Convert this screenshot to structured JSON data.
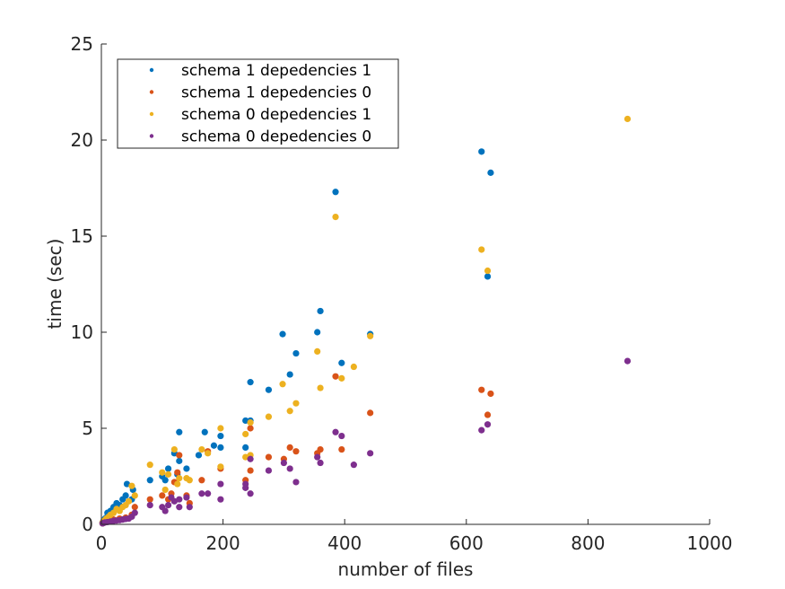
{
  "chart_data": {
    "type": "scatter",
    "title": "",
    "xlabel": "number of files",
    "ylabel": "time (sec)",
    "xlim": [
      0,
      1000
    ],
    "ylim": [
      0,
      25
    ],
    "xticks": [
      0,
      200,
      400,
      600,
      800,
      1000
    ],
    "yticks": [
      0,
      5,
      10,
      15,
      20,
      25
    ],
    "xtick_labels": [
      "0",
      "200",
      "400",
      "600",
      "800",
      "1000"
    ],
    "ytick_labels": [
      "0",
      "5",
      "10",
      "15",
      "20",
      "25"
    ],
    "grid": false,
    "legend_position": "top-left",
    "series": [
      {
        "name": "schema 1 depedencies 1",
        "color": "#0072BD",
        "points": [
          [
            2,
            0.1
          ],
          [
            4,
            0.2
          ],
          [
            6,
            0.3
          ],
          [
            8,
            0.35
          ],
          [
            10,
            0.6
          ],
          [
            15,
            0.7
          ],
          [
            20,
            0.9
          ],
          [
            25,
            1.1
          ],
          [
            30,
            1.0
          ],
          [
            35,
            1.3
          ],
          [
            40,
            1.5
          ],
          [
            42,
            2.1
          ],
          [
            50,
            1.3
          ],
          [
            52,
            1.8
          ],
          [
            80,
            2.3
          ],
          [
            100,
            2.5
          ],
          [
            105,
            2.3
          ],
          [
            110,
            2.9
          ],
          [
            120,
            3.7
          ],
          [
            125,
            2.6
          ],
          [
            128,
            4.8
          ],
          [
            128,
            3.3
          ],
          [
            140,
            2.9
          ],
          [
            160,
            3.6
          ],
          [
            170,
            4.8
          ],
          [
            185,
            4.1
          ],
          [
            196,
            4.6
          ],
          [
            196,
            4.0
          ],
          [
            237,
            5.4
          ],
          [
            237,
            4.0
          ],
          [
            245,
            7.4
          ],
          [
            245,
            5.4
          ],
          [
            275,
            7.0
          ],
          [
            298,
            9.9
          ],
          [
            310,
            7.8
          ],
          [
            320,
            8.9
          ],
          [
            355,
            10.0
          ],
          [
            360,
            11.1
          ],
          [
            385,
            17.3
          ],
          [
            395,
            8.4
          ],
          [
            442,
            9.9
          ],
          [
            625,
            19.4
          ],
          [
            635,
            12.9
          ],
          [
            640,
            18.3
          ]
        ]
      },
      {
        "name": "schema 1 depedencies 0",
        "color": "#D95319",
        "points": [
          [
            2,
            0.05
          ],
          [
            5,
            0.1
          ],
          [
            10,
            0.15
          ],
          [
            15,
            0.2
          ],
          [
            20,
            0.25
          ],
          [
            30,
            0.3
          ],
          [
            40,
            0.35
          ],
          [
            50,
            0.5
          ],
          [
            55,
            0.9
          ],
          [
            80,
            1.3
          ],
          [
            100,
            1.5
          ],
          [
            110,
            1.3
          ],
          [
            115,
            1.6
          ],
          [
            120,
            2.2
          ],
          [
            125,
            2.7
          ],
          [
            128,
            3.6
          ],
          [
            140,
            1.5
          ],
          [
            145,
            1.1
          ],
          [
            165,
            2.3
          ],
          [
            175,
            3.8
          ],
          [
            196,
            2.9
          ],
          [
            237,
            2.3
          ],
          [
            245,
            2.8
          ],
          [
            245,
            5.0
          ],
          [
            275,
            3.5
          ],
          [
            300,
            3.4
          ],
          [
            310,
            4.0
          ],
          [
            320,
            3.8
          ],
          [
            355,
            3.7
          ],
          [
            360,
            3.9
          ],
          [
            385,
            7.7
          ],
          [
            395,
            3.9
          ],
          [
            442,
            5.8
          ],
          [
            625,
            7.0
          ],
          [
            635,
            5.7
          ],
          [
            640,
            6.8
          ]
        ]
      },
      {
        "name": "schema 0 depedencies 1",
        "color": "#EDB120",
        "points": [
          [
            2,
            0.1
          ],
          [
            5,
            0.2
          ],
          [
            8,
            0.3
          ],
          [
            12,
            0.4
          ],
          [
            15,
            0.5
          ],
          [
            20,
            0.6
          ],
          [
            25,
            0.8
          ],
          [
            30,
            0.7
          ],
          [
            35,
            0.9
          ],
          [
            40,
            1.0
          ],
          [
            45,
            1.2
          ],
          [
            50,
            2.0
          ],
          [
            55,
            1.5
          ],
          [
            80,
            3.1
          ],
          [
            100,
            2.7
          ],
          [
            105,
            1.8
          ],
          [
            110,
            2.6
          ],
          [
            120,
            3.9
          ],
          [
            125,
            2.1
          ],
          [
            128,
            2.4
          ],
          [
            140,
            2.4
          ],
          [
            145,
            2.3
          ],
          [
            165,
            3.9
          ],
          [
            175,
            3.7
          ],
          [
            196,
            5.0
          ],
          [
            196,
            3.0
          ],
          [
            237,
            4.7
          ],
          [
            237,
            3.5
          ],
          [
            245,
            5.3
          ],
          [
            245,
            3.6
          ],
          [
            275,
            5.6
          ],
          [
            298,
            7.3
          ],
          [
            310,
            5.9
          ],
          [
            320,
            6.3
          ],
          [
            355,
            9.0
          ],
          [
            360,
            7.1
          ],
          [
            385,
            16.0
          ],
          [
            395,
            7.6
          ],
          [
            415,
            8.2
          ],
          [
            442,
            9.8
          ],
          [
            625,
            14.3
          ],
          [
            635,
            13.2
          ],
          [
            865,
            21.1
          ]
        ]
      },
      {
        "name": "schema 0 depedencies 0",
        "color": "#7E2F8E",
        "points": [
          [
            2,
            0.05
          ],
          [
            4,
            0.08
          ],
          [
            6,
            0.1
          ],
          [
            10,
            0.12
          ],
          [
            15,
            0.15
          ],
          [
            20,
            0.18
          ],
          [
            25,
            0.2
          ],
          [
            30,
            0.22
          ],
          [
            35,
            0.25
          ],
          [
            40,
            0.28
          ],
          [
            45,
            0.3
          ],
          [
            50,
            0.4
          ],
          [
            55,
            0.6
          ],
          [
            80,
            1.0
          ],
          [
            100,
            0.9
          ],
          [
            105,
            0.7
          ],
          [
            110,
            1.0
          ],
          [
            115,
            1.4
          ],
          [
            120,
            1.2
          ],
          [
            128,
            1.3
          ],
          [
            128,
            0.9
          ],
          [
            140,
            1.4
          ],
          [
            145,
            0.9
          ],
          [
            165,
            1.6
          ],
          [
            175,
            1.6
          ],
          [
            196,
            2.1
          ],
          [
            196,
            1.3
          ],
          [
            237,
            2.1
          ],
          [
            237,
            1.9
          ],
          [
            245,
            3.4
          ],
          [
            245,
            1.6
          ],
          [
            275,
            2.8
          ],
          [
            300,
            3.2
          ],
          [
            310,
            2.9
          ],
          [
            320,
            2.2
          ],
          [
            355,
            3.5
          ],
          [
            360,
            3.2
          ],
          [
            385,
            4.8
          ],
          [
            395,
            4.6
          ],
          [
            415,
            3.1
          ],
          [
            442,
            3.7
          ],
          [
            625,
            4.9
          ],
          [
            635,
            5.2
          ],
          [
            865,
            8.5
          ]
        ]
      }
    ]
  }
}
